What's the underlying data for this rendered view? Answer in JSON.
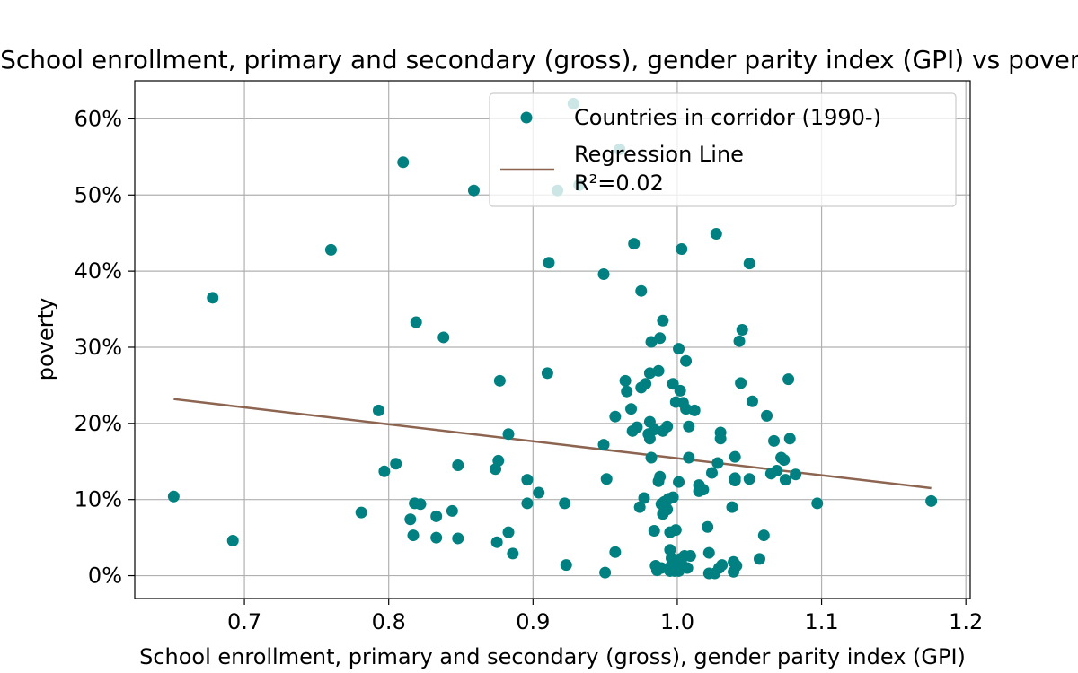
{
  "chart_data": {
    "type": "scatter",
    "title": "School enrollment, primary and secondary (gross), gender parity index (GPI) vs poverty",
    "xlabel": "School enrollment, primary and secondary (gross), gender parity index (GPI)",
    "ylabel": "poverty",
    "xlim": [
      0.624,
      1.203
    ],
    "ylim": [
      -3,
      65
    ],
    "x_ticks": [
      0.7,
      0.8,
      0.9,
      1.0,
      1.1,
      1.2
    ],
    "x_tick_labels": [
      "0.7",
      "0.8",
      "0.9",
      "1.0",
      "1.1",
      "1.2"
    ],
    "y_ticks": [
      0,
      10,
      20,
      30,
      40,
      50,
      60
    ],
    "y_tick_labels": [
      "0%",
      "10%",
      "20%",
      "30%",
      "40%",
      "50%",
      "60%"
    ],
    "grid": true,
    "legend_position": "top-right",
    "colors": {
      "points": "#008080",
      "regression": "#8c6450"
    },
    "series": [
      {
        "name": "Countries in corridor (1990-)",
        "kind": "scatter",
        "points": [
          [
            0.651,
            10.4
          ],
          [
            0.678,
            36.5
          ],
          [
            0.692,
            4.6
          ],
          [
            0.76,
            42.8
          ],
          [
            0.781,
            8.3
          ],
          [
            0.793,
            21.7
          ],
          [
            0.797,
            13.7
          ],
          [
            0.805,
            14.7
          ],
          [
            0.81,
            54.3
          ],
          [
            0.815,
            7.4
          ],
          [
            0.817,
            5.3
          ],
          [
            0.818,
            9.5
          ],
          [
            0.819,
            33.3
          ],
          [
            0.822,
            9.4
          ],
          [
            0.833,
            7.8
          ],
          [
            0.833,
            5.0
          ],
          [
            0.838,
            31.3
          ],
          [
            0.844,
            8.5
          ],
          [
            0.848,
            4.9
          ],
          [
            0.848,
            14.5
          ],
          [
            0.859,
            50.6
          ],
          [
            0.874,
            14.0
          ],
          [
            0.875,
            4.4
          ],
          [
            0.876,
            15.1
          ],
          [
            0.877,
            25.6
          ],
          [
            0.883,
            18.6
          ],
          [
            0.883,
            5.7
          ],
          [
            0.886,
            2.9
          ],
          [
            0.896,
            12.6
          ],
          [
            0.896,
            9.5
          ],
          [
            0.904,
            10.9
          ],
          [
            0.91,
            26.6
          ],
          [
            0.911,
            41.1
          ],
          [
            0.917,
            50.6
          ],
          [
            0.922,
            9.5
          ],
          [
            0.923,
            1.4
          ],
          [
            0.928,
            62.0
          ],
          [
            0.932,
            51.3
          ],
          [
            0.949,
            39.6
          ],
          [
            0.949,
            17.2
          ],
          [
            0.95,
            0.4
          ],
          [
            0.951,
            12.7
          ],
          [
            0.957,
            20.9
          ],
          [
            0.957,
            3.1
          ],
          [
            0.96,
            56.0
          ],
          [
            0.964,
            25.6
          ],
          [
            0.965,
            24.2
          ],
          [
            0.968,
            21.9
          ],
          [
            0.969,
            19.0
          ],
          [
            0.97,
            43.6
          ],
          [
            0.972,
            19.5
          ],
          [
            0.974,
            9.0
          ],
          [
            0.975,
            24.7
          ],
          [
            0.975,
            37.4
          ],
          [
            0.977,
            10.2
          ],
          [
            0.978,
            25.2
          ],
          [
            0.98,
            18.6
          ],
          [
            0.981,
            26.6
          ],
          [
            0.981,
            18.0
          ],
          [
            0.981,
            20.2
          ],
          [
            0.982,
            30.7
          ],
          [
            0.982,
            15.5
          ],
          [
            0.984,
            19.2
          ],
          [
            0.984,
            5.9
          ],
          [
            0.985,
            1.3
          ],
          [
            0.986,
            0.7
          ],
          [
            0.987,
            26.9
          ],
          [
            0.987,
            12.4
          ],
          [
            0.988,
            31.2
          ],
          [
            0.988,
            13.0
          ],
          [
            0.989,
            1.0
          ],
          [
            0.989,
            9.4
          ],
          [
            0.99,
            8.1
          ],
          [
            0.99,
            19.0
          ],
          [
            0.99,
            33.5
          ],
          [
            0.991,
            9.7
          ],
          [
            0.992,
            9.0
          ],
          [
            0.993,
            19.6
          ],
          [
            0.993,
            8.7
          ],
          [
            0.994,
            10.1
          ],
          [
            0.995,
            5.7
          ],
          [
            0.995,
            0.6
          ],
          [
            0.995,
            3.4
          ],
          [
            0.995,
            1.1
          ],
          [
            0.996,
            2.3
          ],
          [
            0.997,
            10.3
          ],
          [
            0.997,
            25.2
          ],
          [
            0.998,
            1.6
          ],
          [
            0.998,
            0.6
          ],
          [
            0.999,
            6.0
          ],
          [
            0.999,
            22.8
          ],
          [
            1.0,
            1.6
          ],
          [
            1.001,
            0.6
          ],
          [
            1.001,
            29.8
          ],
          [
            1.001,
            12.3
          ],
          [
            1.002,
            24.3
          ],
          [
            1.002,
            2.2
          ],
          [
            1.002,
            0.9
          ],
          [
            1.003,
            1.5
          ],
          [
            1.003,
            42.9
          ],
          [
            1.004,
            22.7
          ],
          [
            1.005,
            2.6
          ],
          [
            1.006,
            21.9
          ],
          [
            1.006,
            28.2
          ],
          [
            1.007,
            1.0
          ],
          [
            1.008,
            15.5
          ],
          [
            1.008,
            19.6
          ],
          [
            1.009,
            2.6
          ],
          [
            1.012,
            21.7
          ],
          [
            1.015,
            11.9
          ],
          [
            1.015,
            11.1
          ],
          [
            1.018,
            11.3
          ],
          [
            1.021,
            6.4
          ],
          [
            1.022,
            0.3
          ],
          [
            1.022,
            3.0
          ],
          [
            1.024,
            13.5
          ],
          [
            1.026,
            0.3
          ],
          [
            1.027,
            44.9
          ],
          [
            1.028,
            14.8
          ],
          [
            1.029,
            1.0
          ],
          [
            1.03,
            18.0
          ],
          [
            1.03,
            18.8
          ],
          [
            1.031,
            1.4
          ],
          [
            1.038,
            9.0
          ],
          [
            1.039,
            0.5
          ],
          [
            1.039,
            1.8
          ],
          [
            1.04,
            12.8
          ],
          [
            1.04,
            15.6
          ],
          [
            1.04,
            12.5
          ],
          [
            1.041,
            1.3
          ],
          [
            1.043,
            30.8
          ],
          [
            1.044,
            25.3
          ],
          [
            1.045,
            32.3
          ],
          [
            1.05,
            12.7
          ],
          [
            1.05,
            41.0
          ],
          [
            1.052,
            22.9
          ],
          [
            1.057,
            2.2
          ],
          [
            1.06,
            5.3
          ],
          [
            1.062,
            21.0
          ],
          [
            1.065,
            13.4
          ],
          [
            1.067,
            17.7
          ],
          [
            1.069,
            13.8
          ],
          [
            1.072,
            15.5
          ],
          [
            1.074,
            15.2
          ],
          [
            1.075,
            12.6
          ],
          [
            1.077,
            25.8
          ],
          [
            1.078,
            18.0
          ],
          [
            1.082,
            13.3
          ],
          [
            1.097,
            9.5
          ],
          [
            1.176,
            9.8
          ]
        ]
      },
      {
        "name": "Regression Line",
        "kind": "line",
        "points": [
          [
            0.651,
            23.2
          ],
          [
            1.176,
            11.5
          ]
        ],
        "annotation": "R²=0.02"
      }
    ]
  }
}
